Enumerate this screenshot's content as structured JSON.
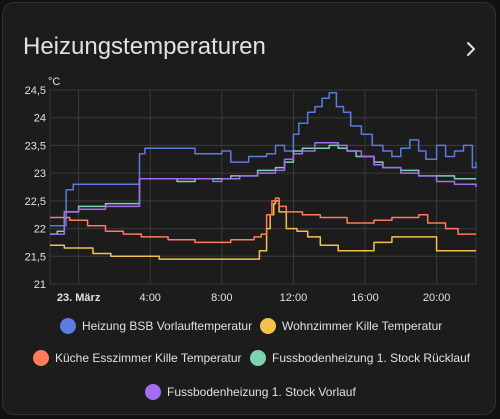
{
  "card": {
    "title": "Heizungstemperaturen",
    "more_icon": "chevron-right-icon"
  },
  "chart_data": {
    "type": "line",
    "unit": "°C",
    "y_ticks": [
      "24,5",
      "24",
      "23,5",
      "23",
      "22,5",
      "22",
      "21,5",
      "21"
    ],
    "ylim": [
      21,
      24.5
    ],
    "x_ticks": [
      "23. März",
      "4:00",
      "8:00",
      "12:00",
      "16:00",
      "20:00"
    ],
    "x_tick_hours": [
      0,
      4,
      8,
      12,
      16,
      20
    ],
    "xlim": [
      -1.6,
      22.2
    ],
    "grid": true,
    "legend_position": "bottom",
    "series": [
      {
        "name": "Heizung BSB Vorlauftemperatur",
        "color": "#5b7be0",
        "points": [
          [
            -1.6,
            22.05
          ],
          [
            -1.2,
            22.05
          ],
          [
            -0.7,
            22.7
          ],
          [
            -0.3,
            22.8
          ],
          [
            1.5,
            22.8
          ],
          [
            3.2,
            22.8
          ],
          [
            3.4,
            23.35
          ],
          [
            3.7,
            23.45
          ],
          [
            5.5,
            23.45
          ],
          [
            6.5,
            23.35
          ],
          [
            8.0,
            23.4
          ],
          [
            8.5,
            23.2
          ],
          [
            9.5,
            23.3
          ],
          [
            10.5,
            23.35
          ],
          [
            11.0,
            23.5
          ],
          [
            11.5,
            23.4
          ],
          [
            12.0,
            23.7
          ],
          [
            12.3,
            23.9
          ],
          [
            12.8,
            24.1
          ],
          [
            13.2,
            24.2
          ],
          [
            13.6,
            24.35
          ],
          [
            14.0,
            24.45
          ],
          [
            14.4,
            24.2
          ],
          [
            14.8,
            24.1
          ],
          [
            15.2,
            23.85
          ],
          [
            15.8,
            23.7
          ],
          [
            16.4,
            23.5
          ],
          [
            17.0,
            23.4
          ],
          [
            17.5,
            23.3
          ],
          [
            18.0,
            23.45
          ],
          [
            18.5,
            23.6
          ],
          [
            19.0,
            23.4
          ],
          [
            19.4,
            23.25
          ],
          [
            20.0,
            23.5
          ],
          [
            20.5,
            23.3
          ],
          [
            21.0,
            23.4
          ],
          [
            21.5,
            23.5
          ],
          [
            22.0,
            23.1
          ],
          [
            22.2,
            23.2
          ]
        ]
      },
      {
        "name": "Wohnzimmer Kille Temperatur",
        "color": "#f2c14e",
        "points": [
          [
            -1.6,
            21.7
          ],
          [
            -0.8,
            21.65
          ],
          [
            0.0,
            21.65
          ],
          [
            0.8,
            21.55
          ],
          [
            1.8,
            21.5
          ],
          [
            3.0,
            21.5
          ],
          [
            4.5,
            21.45
          ],
          [
            6.0,
            21.45
          ],
          [
            8.0,
            21.45
          ],
          [
            9.5,
            21.45
          ],
          [
            10.1,
            21.6
          ],
          [
            10.5,
            22.0
          ],
          [
            10.7,
            22.25
          ],
          [
            10.9,
            22.45
          ],
          [
            11.0,
            22.5
          ],
          [
            11.2,
            22.3
          ],
          [
            11.6,
            22.0
          ],
          [
            12.2,
            21.95
          ],
          [
            12.8,
            21.85
          ],
          [
            13.5,
            21.7
          ],
          [
            14.5,
            21.6
          ],
          [
            15.5,
            21.6
          ],
          [
            16.5,
            21.75
          ],
          [
            17.5,
            21.85
          ],
          [
            18.5,
            21.85
          ],
          [
            19.0,
            21.85
          ],
          [
            19.5,
            21.85
          ],
          [
            20.0,
            21.6
          ],
          [
            21.0,
            21.6
          ],
          [
            22.2,
            21.6
          ]
        ]
      },
      {
        "name": "Küche Esszimmer Kille Temperatur",
        "color": "#ff7b5c",
        "points": [
          [
            -1.6,
            22.2
          ],
          [
            -1.2,
            22.2
          ],
          [
            -0.5,
            22.15
          ],
          [
            0.5,
            22.05
          ],
          [
            1.5,
            21.95
          ],
          [
            2.5,
            21.9
          ],
          [
            3.5,
            21.85
          ],
          [
            5.0,
            21.8
          ],
          [
            6.5,
            21.75
          ],
          [
            7.5,
            21.75
          ],
          [
            8.5,
            21.8
          ],
          [
            9.3,
            21.8
          ],
          [
            9.8,
            21.85
          ],
          [
            10.2,
            21.9
          ],
          [
            10.5,
            22.25
          ],
          [
            10.8,
            22.5
          ],
          [
            11.0,
            22.55
          ],
          [
            11.2,
            22.4
          ],
          [
            11.6,
            22.3
          ],
          [
            12.5,
            22.25
          ],
          [
            13.5,
            22.2
          ],
          [
            15.0,
            22.1
          ],
          [
            16.5,
            22.15
          ],
          [
            17.5,
            22.2
          ],
          [
            19.0,
            22.25
          ],
          [
            19.5,
            22.1
          ],
          [
            20.5,
            22.0
          ],
          [
            21.2,
            21.9
          ],
          [
            22.2,
            21.9
          ]
        ]
      },
      {
        "name": "Fussbodenheizung 1. Stock Rücklauf",
        "color": "#7dd3b0",
        "points": [
          [
            -1.6,
            21.9
          ],
          [
            -1.2,
            21.95
          ],
          [
            -0.8,
            22.3
          ],
          [
            0.0,
            22.4
          ],
          [
            1.5,
            22.45
          ],
          [
            3.2,
            22.45
          ],
          [
            3.4,
            22.9
          ],
          [
            4.5,
            22.9
          ],
          [
            5.5,
            22.85
          ],
          [
            6.5,
            22.9
          ],
          [
            7.5,
            22.9
          ],
          [
            8.0,
            22.9
          ],
          [
            8.5,
            22.95
          ],
          [
            9.0,
            22.95
          ],
          [
            10.0,
            23.05
          ],
          [
            10.5,
            23.05
          ],
          [
            11.0,
            23.1
          ],
          [
            11.5,
            23.2
          ],
          [
            12.0,
            23.4
          ],
          [
            12.5,
            23.45
          ],
          [
            13.5,
            23.45
          ],
          [
            14.0,
            23.5
          ],
          [
            14.5,
            23.45
          ],
          [
            15.0,
            23.4
          ],
          [
            15.5,
            23.3
          ],
          [
            16.5,
            23.2
          ],
          [
            17.0,
            23.1
          ],
          [
            18.0,
            23.05
          ],
          [
            19.0,
            22.95
          ],
          [
            20.0,
            22.95
          ],
          [
            21.0,
            22.9
          ],
          [
            22.2,
            22.9
          ]
        ]
      },
      {
        "name": "Fussbodenheizung 1. Stock Vorlauf",
        "color": "#a56cf0",
        "points": [
          [
            -1.6,
            21.9
          ],
          [
            -1.2,
            21.9
          ],
          [
            -0.8,
            22.3
          ],
          [
            0.0,
            22.35
          ],
          [
            1.5,
            22.4
          ],
          [
            3.2,
            22.4
          ],
          [
            3.4,
            22.9
          ],
          [
            5.0,
            22.9
          ],
          [
            6.5,
            22.9
          ],
          [
            7.5,
            22.85
          ],
          [
            8.0,
            22.9
          ],
          [
            9.0,
            22.95
          ],
          [
            10.0,
            23.0
          ],
          [
            10.5,
            23.0
          ],
          [
            11.0,
            23.05
          ],
          [
            11.5,
            23.25
          ],
          [
            12.0,
            23.35
          ],
          [
            12.5,
            23.4
          ],
          [
            13.2,
            23.55
          ],
          [
            14.0,
            23.55
          ],
          [
            14.5,
            23.5
          ],
          [
            15.0,
            23.4
          ],
          [
            15.8,
            23.3
          ],
          [
            16.5,
            23.15
          ],
          [
            17.0,
            23.1
          ],
          [
            18.0,
            23.0
          ],
          [
            19.0,
            22.95
          ],
          [
            20.0,
            22.85
          ],
          [
            21.0,
            22.8
          ],
          [
            22.2,
            22.75
          ]
        ]
      }
    ]
  }
}
